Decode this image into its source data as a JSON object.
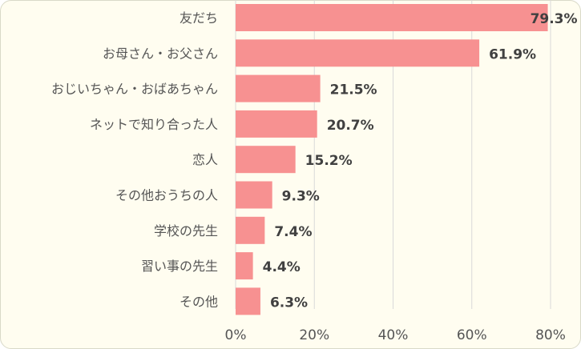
{
  "chart_data": {
    "type": "bar",
    "orientation": "horizontal",
    "categories": [
      "友だち",
      "お母さん・お父さん",
      "おじいちゃん・おばあちゃん",
      "ネットで知り合った人",
      "恋人",
      "その他おうちの人",
      "学校の先生",
      "習い事の先生",
      "その他"
    ],
    "values": [
      79.3,
      61.9,
      21.5,
      20.7,
      15.2,
      9.3,
      7.4,
      4.4,
      6.3
    ],
    "data_labels": [
      "79.3%",
      "61.9%",
      "21.5%",
      "20.7%",
      "15.2%",
      "9.3%",
      "7.4%",
      "4.4%",
      "6.3%"
    ],
    "xlim": [
      0,
      80
    ],
    "x_ticks": [
      0,
      20,
      40,
      60,
      80
    ],
    "x_tick_labels": [
      "0%",
      "20%",
      "40%",
      "60%",
      "80%"
    ],
    "grid": true,
    "legend": "none",
    "colors": {
      "bar": "#f79191",
      "grid": "#d9d9d9",
      "background": "#fffdf0"
    }
  }
}
